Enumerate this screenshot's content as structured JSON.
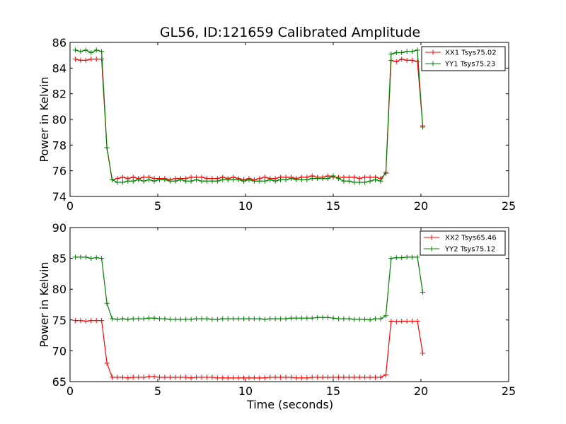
{
  "title": "GL56, ID:121659 Calibrated Amplitude",
  "xlabel": "Time (seconds)",
  "chart_data": [
    {
      "type": "line",
      "ylabel": "Power in Kelvin",
      "xlim": [
        0,
        25
      ],
      "ylim": [
        74,
        86
      ],
      "xticks": [
        0,
        5,
        10,
        15,
        20,
        25
      ],
      "yticks": [
        74,
        76,
        78,
        80,
        82,
        84,
        86
      ],
      "grid": false,
      "legend_position": "top-right",
      "series": [
        {
          "name": "XX1 Tsys75.02",
          "color": "#ff0000",
          "x": [
            0.3,
            0.6,
            0.9,
            1.2,
            1.5,
            1.8,
            2.1,
            2.4,
            2.7,
            3.0,
            3.3,
            3.6,
            3.9,
            4.2,
            4.5,
            4.8,
            5.1,
            5.4,
            5.7,
            6.0,
            6.3,
            6.6,
            6.9,
            7.2,
            7.5,
            7.8,
            8.1,
            8.4,
            8.7,
            9.0,
            9.3,
            9.6,
            9.9,
            10.2,
            10.5,
            10.8,
            11.1,
            11.4,
            11.7,
            12.0,
            12.3,
            12.6,
            12.9,
            13.2,
            13.5,
            13.8,
            14.1,
            14.4,
            14.7,
            15.0,
            15.3,
            15.6,
            15.9,
            16.2,
            16.5,
            16.8,
            17.1,
            17.4,
            17.7,
            18.0,
            18.3,
            18.6,
            18.9,
            19.2,
            19.5,
            19.8,
            20.1
          ],
          "y": [
            84.7,
            84.6,
            84.6,
            84.7,
            84.7,
            84.7,
            77.8,
            75.3,
            75.4,
            75.5,
            75.4,
            75.5,
            75.4,
            75.5,
            75.5,
            75.4,
            75.4,
            75.4,
            75.3,
            75.4,
            75.4,
            75.4,
            75.5,
            75.5,
            75.5,
            75.4,
            75.4,
            75.4,
            75.5,
            75.4,
            75.5,
            75.4,
            75.3,
            75.4,
            75.3,
            75.4,
            75.5,
            75.4,
            75.4,
            75.5,
            75.5,
            75.5,
            75.4,
            75.5,
            75.5,
            75.6,
            75.5,
            75.5,
            75.6,
            75.5,
            75.5,
            75.5,
            75.5,
            75.5,
            75.4,
            75.5,
            75.5,
            75.5,
            75.4,
            75.8,
            84.6,
            84.5,
            84.7,
            84.6,
            84.6,
            84.5,
            79.5
          ]
        },
        {
          "name": "YY1 Tsys75.23",
          "color": "#008000",
          "x": [
            0.3,
            0.6,
            0.9,
            1.2,
            1.5,
            1.8,
            2.1,
            2.4,
            2.7,
            3.0,
            3.3,
            3.6,
            3.9,
            4.2,
            4.5,
            4.8,
            5.1,
            5.4,
            5.7,
            6.0,
            6.3,
            6.6,
            6.9,
            7.2,
            7.5,
            7.8,
            8.1,
            8.4,
            8.7,
            9.0,
            9.3,
            9.6,
            9.9,
            10.2,
            10.5,
            10.8,
            11.1,
            11.4,
            11.7,
            12.0,
            12.3,
            12.6,
            12.9,
            13.2,
            13.5,
            13.8,
            14.1,
            14.4,
            14.7,
            15.0,
            15.3,
            15.6,
            15.9,
            16.2,
            16.5,
            16.8,
            17.1,
            17.4,
            17.7,
            18.0,
            18.3,
            18.6,
            18.9,
            19.2,
            19.5,
            19.8,
            20.1
          ],
          "y": [
            85.4,
            85.3,
            85.4,
            85.2,
            85.4,
            85.3,
            77.8,
            75.3,
            75.1,
            75.1,
            75.2,
            75.2,
            75.3,
            75.2,
            75.3,
            75.2,
            75.3,
            75.3,
            75.2,
            75.2,
            75.3,
            75.2,
            75.2,
            75.3,
            75.2,
            75.2,
            75.2,
            75.2,
            75.3,
            75.3,
            75.3,
            75.3,
            75.2,
            75.3,
            75.2,
            75.2,
            75.2,
            75.3,
            75.2,
            75.3,
            75.3,
            75.4,
            75.3,
            75.3,
            75.3,
            75.4,
            75.4,
            75.4,
            75.4,
            75.6,
            75.4,
            75.2,
            75.2,
            75.1,
            75.1,
            75.1,
            75.2,
            75.3,
            75.2,
            75.9,
            85.1,
            85.2,
            85.2,
            85.3,
            85.3,
            85.4,
            79.4
          ]
        }
      ]
    },
    {
      "type": "line",
      "ylabel": "Power in Kelvin",
      "xlim": [
        0,
        25
      ],
      "ylim": [
        65,
        90
      ],
      "xticks": [
        0,
        5,
        10,
        15,
        20,
        25
      ],
      "yticks": [
        65,
        70,
        75,
        80,
        85,
        90
      ],
      "grid": false,
      "legend_position": "top-right",
      "series": [
        {
          "name": "XX2 Tsys65.46",
          "color": "#ff0000",
          "x": [
            0.3,
            0.6,
            0.9,
            1.2,
            1.5,
            1.8,
            2.1,
            2.4,
            2.7,
            3.0,
            3.3,
            3.6,
            3.9,
            4.2,
            4.5,
            4.8,
            5.1,
            5.4,
            5.7,
            6.0,
            6.3,
            6.6,
            6.9,
            7.2,
            7.5,
            7.8,
            8.1,
            8.4,
            8.7,
            9.0,
            9.3,
            9.6,
            9.9,
            10.2,
            10.5,
            10.8,
            11.1,
            11.4,
            11.7,
            12.0,
            12.3,
            12.6,
            12.9,
            13.2,
            13.5,
            13.8,
            14.1,
            14.4,
            14.7,
            15.0,
            15.3,
            15.6,
            15.9,
            16.2,
            16.5,
            16.8,
            17.1,
            17.4,
            17.7,
            18.0,
            18.3,
            18.6,
            18.9,
            19.2,
            19.5,
            19.8,
            20.1
          ],
          "y": [
            74.9,
            74.9,
            74.8,
            74.9,
            74.9,
            74.9,
            68.0,
            65.7,
            65.7,
            65.7,
            65.6,
            65.7,
            65.7,
            65.7,
            65.8,
            65.8,
            65.7,
            65.7,
            65.7,
            65.7,
            65.7,
            65.7,
            65.6,
            65.7,
            65.7,
            65.7,
            65.7,
            65.6,
            65.6,
            65.6,
            65.6,
            65.6,
            65.6,
            65.6,
            65.6,
            65.6,
            65.6,
            65.7,
            65.7,
            65.7,
            65.7,
            65.7,
            65.6,
            65.6,
            65.6,
            65.7,
            65.7,
            65.7,
            65.7,
            65.7,
            65.7,
            65.7,
            65.7,
            65.7,
            65.7,
            65.7,
            65.7,
            65.7,
            65.7,
            66.1,
            74.8,
            74.7,
            74.8,
            74.8,
            74.8,
            74.8,
            69.6
          ]
        },
        {
          "name": "YY2 Tsys75.12",
          "color": "#008000",
          "x": [
            0.3,
            0.6,
            0.9,
            1.2,
            1.5,
            1.8,
            2.1,
            2.4,
            2.7,
            3.0,
            3.3,
            3.6,
            3.9,
            4.2,
            4.5,
            4.8,
            5.1,
            5.4,
            5.7,
            6.0,
            6.3,
            6.6,
            6.9,
            7.2,
            7.5,
            7.8,
            8.1,
            8.4,
            8.7,
            9.0,
            9.3,
            9.6,
            9.9,
            10.2,
            10.5,
            10.8,
            11.1,
            11.4,
            11.7,
            12.0,
            12.3,
            12.6,
            12.9,
            13.2,
            13.5,
            13.8,
            14.1,
            14.4,
            14.7,
            15.0,
            15.3,
            15.6,
            15.9,
            16.2,
            16.5,
            16.8,
            17.1,
            17.4,
            17.7,
            18.0,
            18.3,
            18.6,
            18.9,
            19.2,
            19.5,
            19.8,
            20.1
          ],
          "y": [
            85.2,
            85.2,
            85.2,
            85.0,
            85.1,
            85.0,
            77.7,
            75.2,
            75.1,
            75.2,
            75.1,
            75.2,
            75.2,
            75.2,
            75.3,
            75.3,
            75.2,
            75.2,
            75.1,
            75.1,
            75.1,
            75.1,
            75.1,
            75.2,
            75.2,
            75.2,
            75.1,
            75.1,
            75.2,
            75.2,
            75.2,
            75.2,
            75.2,
            75.2,
            75.2,
            75.2,
            75.1,
            75.2,
            75.2,
            75.2,
            75.2,
            75.3,
            75.3,
            75.3,
            75.3,
            75.3,
            75.4,
            75.4,
            75.4,
            75.3,
            75.2,
            75.2,
            75.2,
            75.1,
            75.1,
            75.1,
            75.0,
            75.2,
            75.2,
            75.7,
            85.0,
            85.1,
            85.1,
            85.2,
            85.2,
            85.2,
            79.5
          ]
        }
      ]
    }
  ]
}
